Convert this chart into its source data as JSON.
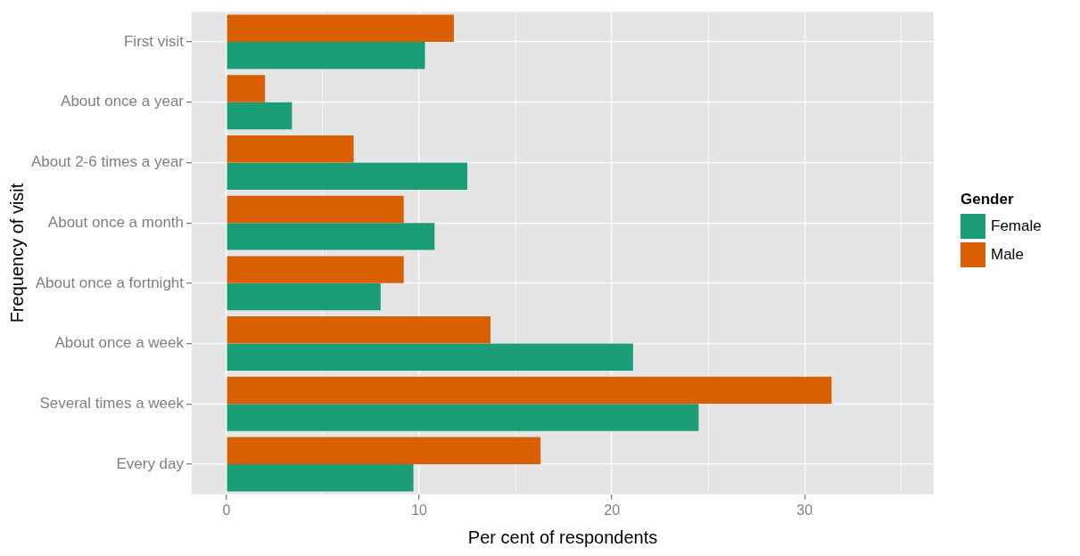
{
  "chart_data": {
    "type": "bar",
    "orientation": "horizontal",
    "xlabel": "Per cent of respondents",
    "ylabel": "Frequency of visit",
    "legend_title": "Gender",
    "legend": "right",
    "grid": true,
    "categories": [
      "First visit",
      "About once a year",
      "About 2-6 times a year",
      "About once a month",
      "About once a fortnight",
      "About once a week",
      "Several times a week",
      "Every day"
    ],
    "series": [
      {
        "name": "Female",
        "color": "#1b9e77",
        "values": [
          10.3,
          3.4,
          12.5,
          10.8,
          8.0,
          21.1,
          24.5,
          9.7
        ]
      },
      {
        "name": "Male",
        "color": "#d95f02",
        "values": [
          11.8,
          2.0,
          6.6,
          9.2,
          9.2,
          13.7,
          31.4,
          16.3
        ]
      }
    ],
    "xlim": [
      -1.8,
      36.7
    ],
    "xticks": [
      0,
      {
        "value": 5,
        "label": null
      },
      10,
      {
        "value": 15,
        "label": null
      },
      20,
      {
        "value": 25,
        "label": null
      },
      30,
      {
        "value": 35,
        "label": null
      }
    ]
  }
}
